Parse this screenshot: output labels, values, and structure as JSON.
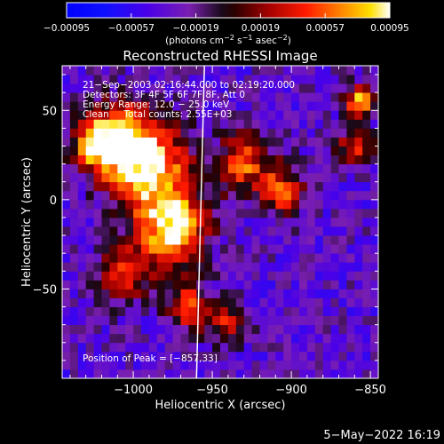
{
  "chart_data": {
    "type": "heatmap",
    "title": "Reconstructed RHESSI Image",
    "xlabel": "Heliocentric X (arcsec)",
    "ylabel": "Heliocentric Y (arcsec)",
    "xlim": [
      -1045,
      -845
    ],
    "ylim": [
      -100,
      75
    ],
    "xticks": [
      -1000,
      -950,
      -900,
      -850
    ],
    "xtick_labels": [
      "−1000",
      "−950",
      "−900",
      "−850"
    ],
    "yticks": [
      -50,
      0,
      50
    ],
    "ytick_labels": [
      "−50",
      "0",
      "50"
    ],
    "colorbar": {
      "range": [
        -0.00095,
        0.00095
      ],
      "ticks": [
        -0.00095,
        -0.00057,
        -0.00019,
        0.00019,
        0.00057,
        0.00095
      ],
      "tick_labels": [
        "−0.00095",
        "−0.00057",
        "−0.00019",
        "0.00019",
        "0.00057",
        "0.00095"
      ],
      "units_prefix": "(photons cm",
      "units_sup1": "−2",
      "units_mid1": " s",
      "units_sup2": "−1",
      "units_mid2": " asec",
      "units_sup3": "−2",
      "units_suffix": ")"
    },
    "annotations": [
      "21−Sep−2003 02:16:44.000 to 02:19:20.000",
      "Detectors: 3F 4F 5F 6F 7F 8F, Att 0",
      "Energy Range: 12.0 − 25.0 keV",
      "Clean     Total counts: 2.55E+03"
    ],
    "peak_label": "Position of Peak = [−857,33]",
    "peak": [
      -857,
      33
    ],
    "limb_line": [
      [
        -955,
        75
      ],
      [
        -960,
        -100
      ]
    ],
    "sources": [
      {
        "x": -990,
        "y": 20,
        "intensity": 0.00085,
        "sigma": 18
      },
      {
        "x": -975,
        "y": -15,
        "intensity": 0.0009,
        "sigma": 15
      },
      {
        "x": -1010,
        "y": 35,
        "intensity": 0.0006,
        "sigma": 14
      },
      {
        "x": -1025,
        "y": 30,
        "intensity": 0.00045,
        "sigma": 10
      },
      {
        "x": -930,
        "y": 20,
        "intensity": 0.0005,
        "sigma": 12
      },
      {
        "x": -905,
        "y": 5,
        "intensity": 0.00045,
        "sigma": 10
      },
      {
        "x": -860,
        "y": 30,
        "intensity": 0.0004,
        "sigma": 8
      },
      {
        "x": -857,
        "y": 55,
        "intensity": 0.0008,
        "sigma": 6
      },
      {
        "x": -965,
        "y": -60,
        "intensity": 0.0004,
        "sigma": 10
      },
      {
        "x": -940,
        "y": -70,
        "intensity": 0.0003,
        "sigma": 8
      },
      {
        "x": -1005,
        "y": -40,
        "intensity": 0.0004,
        "sigma": 12
      }
    ],
    "background_level": -0.00035
  },
  "footer": {
    "date": "5−May−2022 16:19"
  }
}
